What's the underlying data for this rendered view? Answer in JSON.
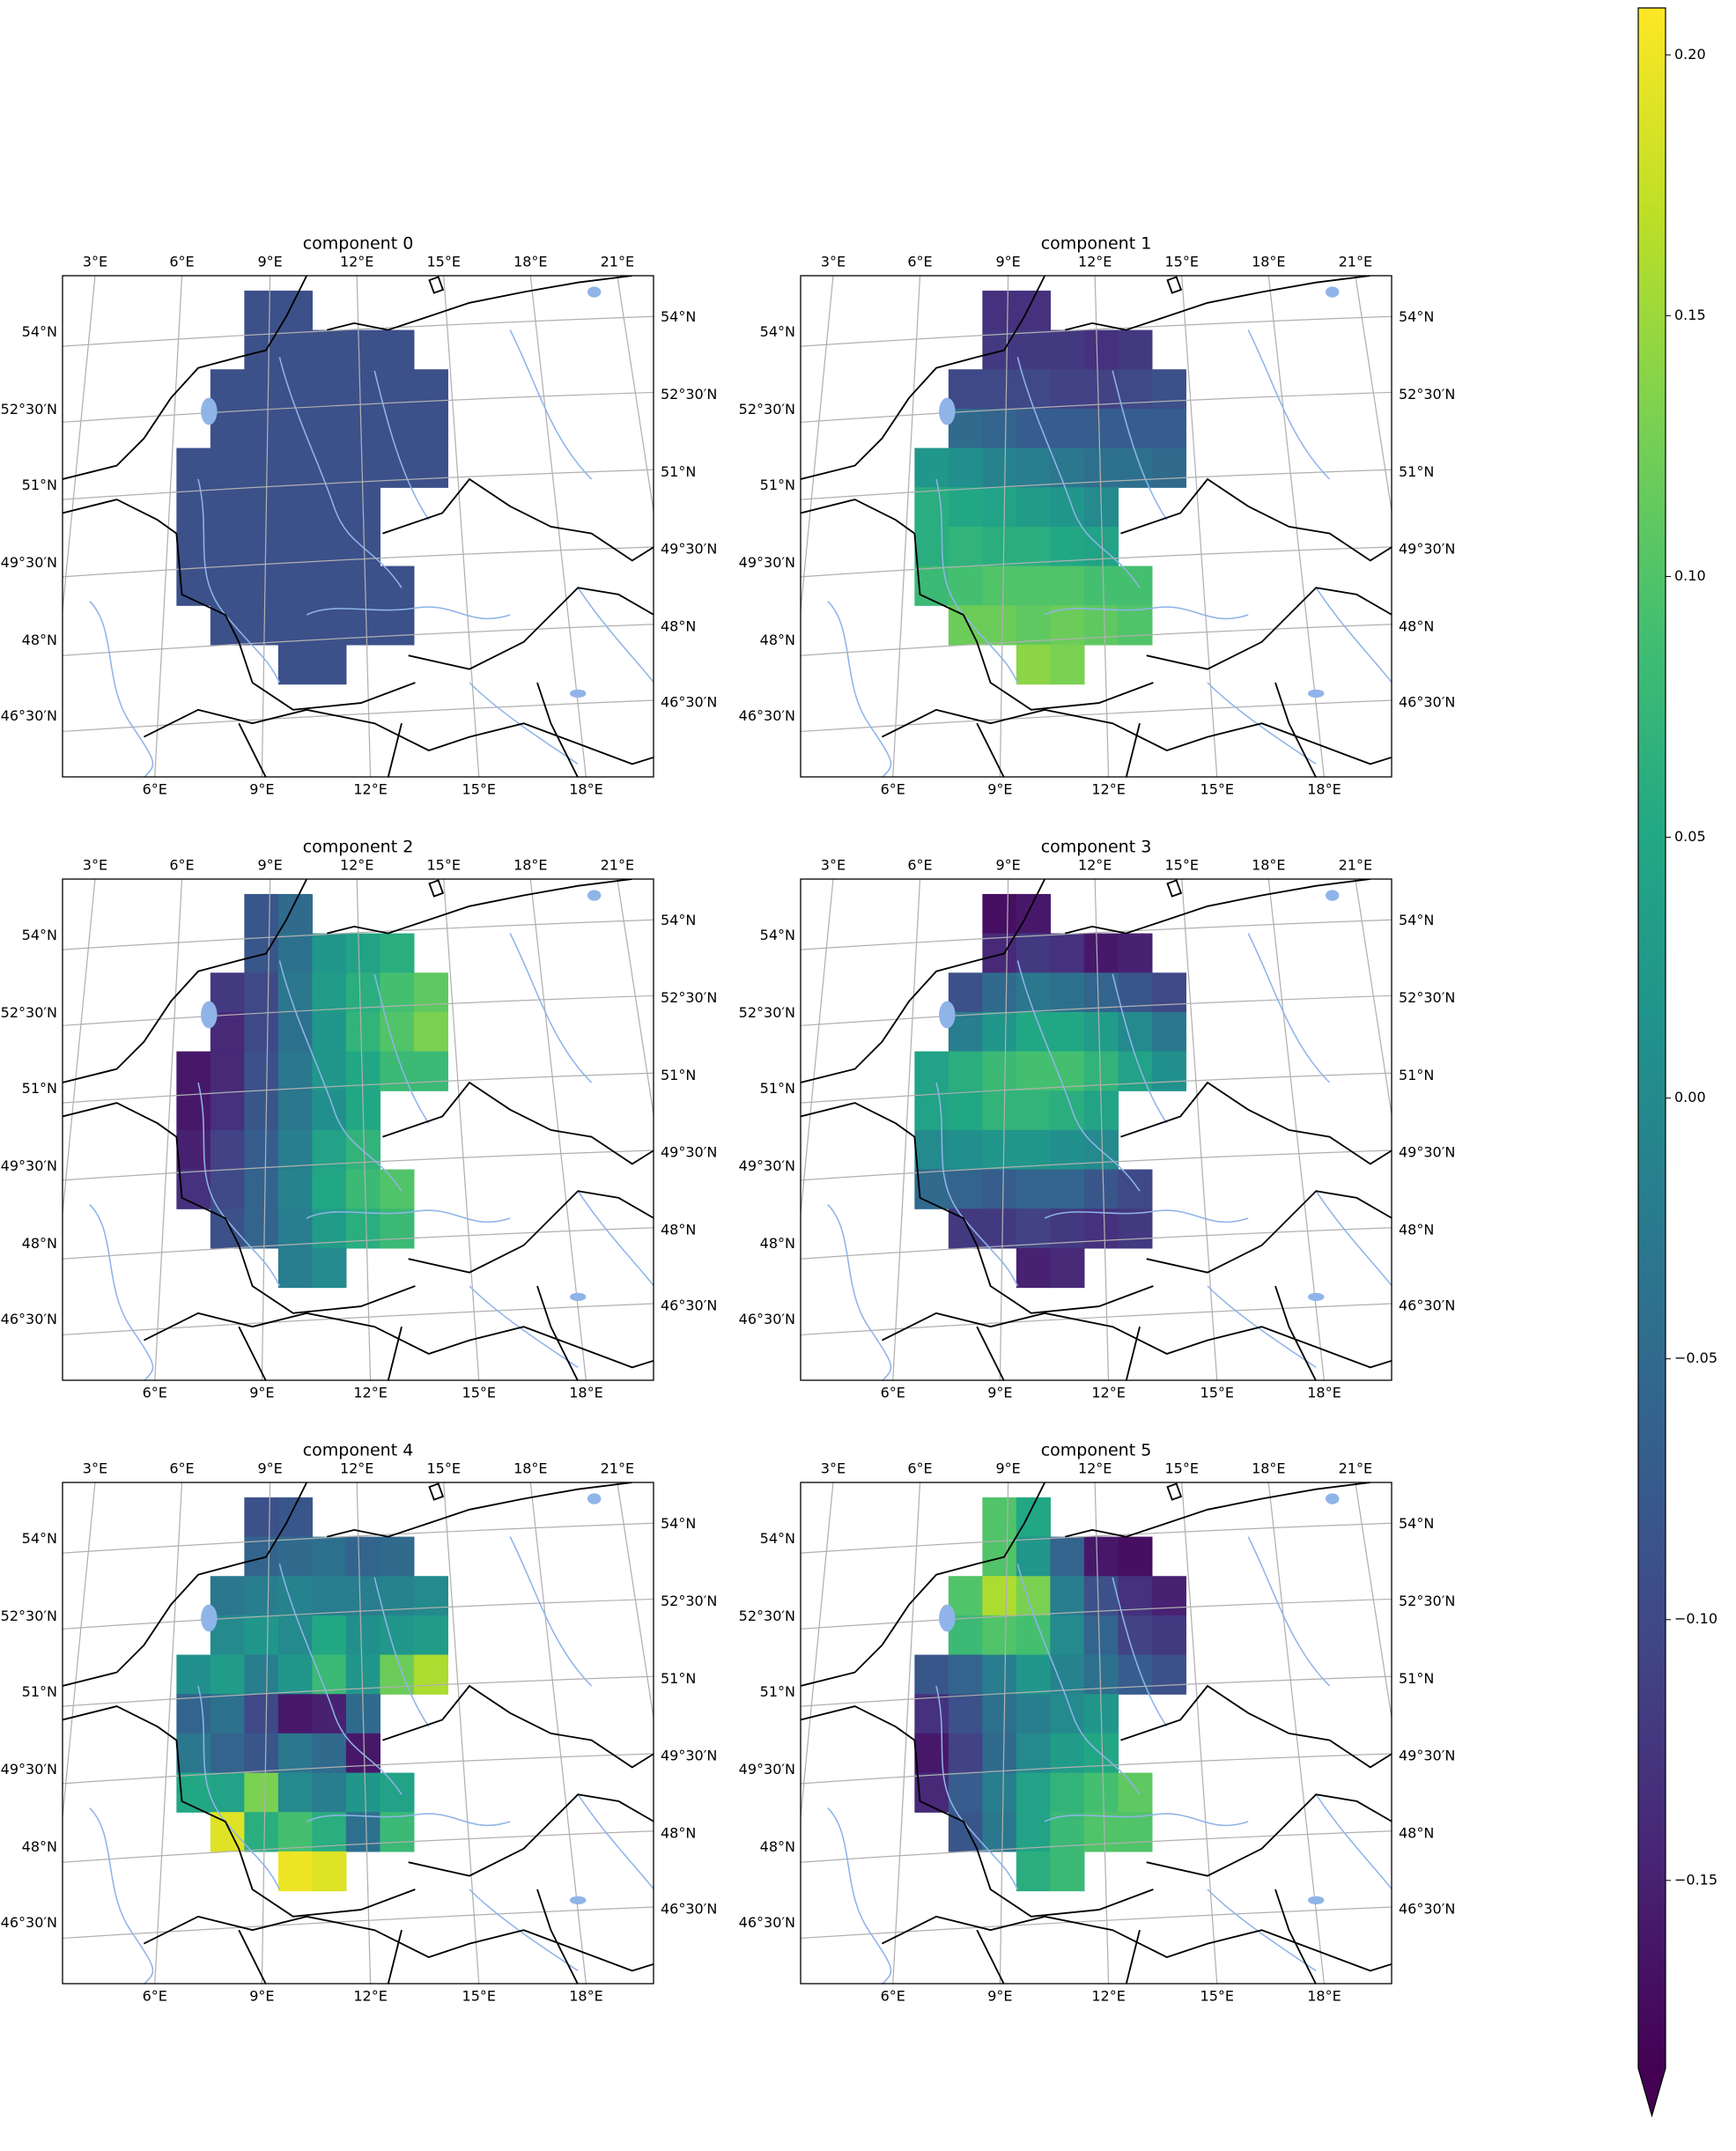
{
  "chart_data": [
    {
      "type": "heatmap",
      "title": "component 0",
      "values": [
        [
          null,
          null,
          -0.09,
          -0.09,
          null,
          null,
          null,
          null
        ],
        [
          null,
          null,
          -0.09,
          -0.09,
          -0.09,
          -0.09,
          -0.09,
          null
        ],
        [
          null,
          -0.09,
          -0.09,
          -0.09,
          -0.09,
          -0.09,
          -0.09,
          -0.09
        ],
        [
          null,
          -0.09,
          -0.09,
          -0.09,
          -0.09,
          -0.09,
          -0.09,
          -0.09
        ],
        [
          -0.09,
          -0.09,
          -0.09,
          -0.09,
          -0.09,
          -0.09,
          -0.09,
          -0.09
        ],
        [
          -0.09,
          -0.09,
          -0.09,
          -0.09,
          -0.09,
          -0.09,
          null,
          null
        ],
        [
          -0.09,
          -0.09,
          -0.09,
          -0.09,
          -0.09,
          -0.09,
          null,
          null
        ],
        [
          -0.09,
          -0.09,
          -0.09,
          -0.09,
          -0.09,
          -0.09,
          -0.09,
          null
        ],
        [
          null,
          -0.09,
          -0.09,
          -0.09,
          -0.09,
          -0.09,
          -0.09,
          null
        ],
        [
          null,
          null,
          null,
          -0.09,
          -0.09,
          null,
          null,
          null
        ]
      ]
    },
    {
      "type": "heatmap",
      "title": "component 1",
      "values": [
        [
          null,
          null,
          -0.13,
          -0.13,
          null,
          null,
          null,
          null
        ],
        [
          null,
          null,
          -0.12,
          -0.12,
          -0.12,
          -0.13,
          -0.12,
          null
        ],
        [
          null,
          -0.1,
          -0.1,
          -0.1,
          -0.11,
          -0.11,
          -0.1,
          -0.09
        ],
        [
          null,
          -0.05,
          -0.06,
          -0.07,
          -0.07,
          -0.07,
          -0.07,
          -0.07
        ],
        [
          0.02,
          0.01,
          -0.01,
          -0.02,
          -0.03,
          -0.04,
          -0.04,
          -0.05
        ],
        [
          0.06,
          0.05,
          0.04,
          0.03,
          0.02,
          0.0,
          null,
          null
        ],
        [
          0.06,
          0.07,
          0.06,
          0.06,
          0.05,
          0.04,
          null,
          null
        ],
        [
          0.08,
          0.09,
          0.1,
          0.1,
          0.1,
          0.09,
          0.09,
          null
        ],
        [
          null,
          0.12,
          0.12,
          0.11,
          0.12,
          0.11,
          0.1,
          null
        ],
        [
          null,
          null,
          null,
          0.14,
          0.13,
          null,
          null,
          null
        ]
      ]
    },
    {
      "type": "heatmap",
      "title": "component 2",
      "values": [
        [
          null,
          null,
          -0.08,
          -0.05,
          null,
          null,
          null,
          null
        ],
        [
          null,
          null,
          -0.08,
          -0.04,
          0.02,
          0.04,
          0.06,
          null
        ],
        [
          null,
          -0.12,
          -0.1,
          -0.03,
          0.03,
          0.06,
          0.09,
          0.11
        ],
        [
          null,
          -0.14,
          -0.1,
          -0.04,
          0.02,
          0.07,
          0.1,
          0.13
        ],
        [
          -0.16,
          -0.14,
          -0.09,
          -0.03,
          0.02,
          0.05,
          0.08,
          0.08
        ],
        [
          -0.16,
          -0.13,
          -0.08,
          -0.03,
          0.01,
          0.05,
          null,
          null
        ],
        [
          -0.15,
          -0.11,
          -0.07,
          -0.02,
          0.04,
          0.07,
          null,
          null
        ],
        [
          -0.13,
          -0.1,
          -0.06,
          -0.01,
          0.05,
          0.08,
          0.1,
          null
        ],
        [
          null,
          -0.09,
          -0.06,
          -0.02,
          0.03,
          0.06,
          0.08,
          null
        ],
        [
          null,
          null,
          null,
          -0.02,
          0.0,
          null,
          null,
          null
        ]
      ]
    },
    {
      "type": "heatmap",
      "title": "component 3",
      "values": [
        [
          null,
          null,
          -0.17,
          -0.16,
          null,
          null,
          null,
          null
        ],
        [
          null,
          null,
          -0.14,
          -0.12,
          -0.13,
          -0.16,
          -0.15,
          null
        ],
        [
          null,
          -0.09,
          -0.05,
          -0.03,
          -0.04,
          -0.06,
          -0.08,
          -0.1
        ],
        [
          null,
          -0.02,
          0.02,
          0.05,
          0.05,
          0.03,
          0.0,
          -0.03
        ],
        [
          0.04,
          0.06,
          0.08,
          0.09,
          0.09,
          0.07,
          0.04,
          0.01
        ],
        [
          0.04,
          0.05,
          0.07,
          0.07,
          0.06,
          0.04,
          null,
          null
        ],
        [
          0.0,
          0.01,
          0.02,
          0.02,
          0.01,
          0.0,
          null,
          null
        ],
        [
          -0.05,
          -0.06,
          -0.07,
          -0.06,
          -0.06,
          -0.08,
          -0.1,
          null
        ],
        [
          null,
          -0.12,
          -0.12,
          -0.11,
          -0.12,
          -0.13,
          -0.12,
          null
        ],
        [
          null,
          null,
          null,
          -0.15,
          -0.14,
          null,
          null,
          null
        ]
      ]
    },
    {
      "type": "heatmap",
      "title": "component 4",
      "values": [
        [
          null,
          null,
          -0.09,
          -0.08,
          null,
          null,
          null,
          null
        ],
        [
          null,
          null,
          -0.06,
          -0.05,
          -0.04,
          -0.06,
          -0.05,
          null
        ],
        [
          null,
          -0.03,
          -0.02,
          -0.01,
          -0.02,
          -0.02,
          -0.01,
          0.0
        ],
        [
          null,
          0.0,
          0.02,
          0.0,
          0.05,
          0.01,
          0.02,
          0.03
        ],
        [
          0.01,
          0.03,
          -0.02,
          0.02,
          0.08,
          0.02,
          0.12,
          0.16
        ],
        [
          -0.06,
          -0.04,
          -0.1,
          -0.16,
          -0.15,
          -0.05,
          null,
          null
        ],
        [
          -0.03,
          -0.06,
          -0.08,
          -0.03,
          -0.05,
          -0.16,
          null,
          null
        ],
        [
          0.05,
          0.04,
          0.13,
          0.0,
          -0.02,
          0.02,
          0.04,
          null
        ],
        [
          null,
          0.19,
          0.06,
          0.09,
          0.06,
          -0.04,
          0.08,
          null
        ],
        [
          null,
          null,
          null,
          0.2,
          0.19,
          null,
          null,
          null
        ]
      ]
    },
    {
      "type": "heatmap",
      "title": "component 5",
      "values": [
        [
          null,
          null,
          0.1,
          0.05,
          null,
          null,
          null,
          null
        ],
        [
          null,
          null,
          0.1,
          0.02,
          -0.06,
          -0.16,
          -0.17,
          null
        ],
        [
          null,
          0.1,
          0.16,
          0.13,
          -0.02,
          -0.09,
          -0.13,
          -0.15
        ],
        [
          null,
          0.08,
          0.1,
          0.09,
          0.0,
          -0.06,
          -0.11,
          -0.12
        ],
        [
          -0.08,
          -0.06,
          -0.02,
          0.02,
          -0.01,
          -0.04,
          -0.07,
          -0.09
        ],
        [
          -0.13,
          -0.09,
          -0.04,
          -0.02,
          0.0,
          0.02,
          null,
          null
        ],
        [
          -0.16,
          -0.11,
          -0.05,
          0.0,
          0.03,
          0.05,
          null,
          null
        ],
        [
          -0.14,
          -0.07,
          -0.02,
          0.04,
          0.07,
          0.09,
          0.11,
          null
        ],
        [
          null,
          -0.08,
          -0.03,
          0.04,
          0.08,
          0.1,
          0.1,
          null
        ],
        [
          null,
          null,
          null,
          0.06,
          0.08,
          null,
          null,
          null
        ]
      ]
    }
  ],
  "map_labels": {
    "top": [
      "3°E",
      "6°E",
      "9°E",
      "12°E",
      "15°E",
      "18°E",
      "21°E"
    ],
    "bottom": [
      "6°E",
      "9°E",
      "12°E",
      "15°E",
      "18°E"
    ],
    "left": [
      "54°N",
      "52°30′N",
      "51°N",
      "49°30′N",
      "48°N",
      "46°30′N"
    ],
    "right": [
      "54°N",
      "52°30′N",
      "51°N",
      "49°30′N",
      "48°N",
      "46°30′N"
    ]
  },
  "colorbar": {
    "colormap": "viridis",
    "ylim": [
      -0.186,
      0.209
    ],
    "yticks": [
      {
        "value": 0.2,
        "label": "0.20"
      },
      {
        "value": 0.15,
        "label": "0.15"
      },
      {
        "value": 0.1,
        "label": "0.10"
      },
      {
        "value": 0.05,
        "label": "0.05"
      },
      {
        "value": 0.0,
        "label": "0.00"
      },
      {
        "value": -0.05,
        "label": "−0.05"
      },
      {
        "value": -0.1,
        "label": "−0.10"
      },
      {
        "value": -0.15,
        "label": "−0.15"
      }
    ]
  }
}
